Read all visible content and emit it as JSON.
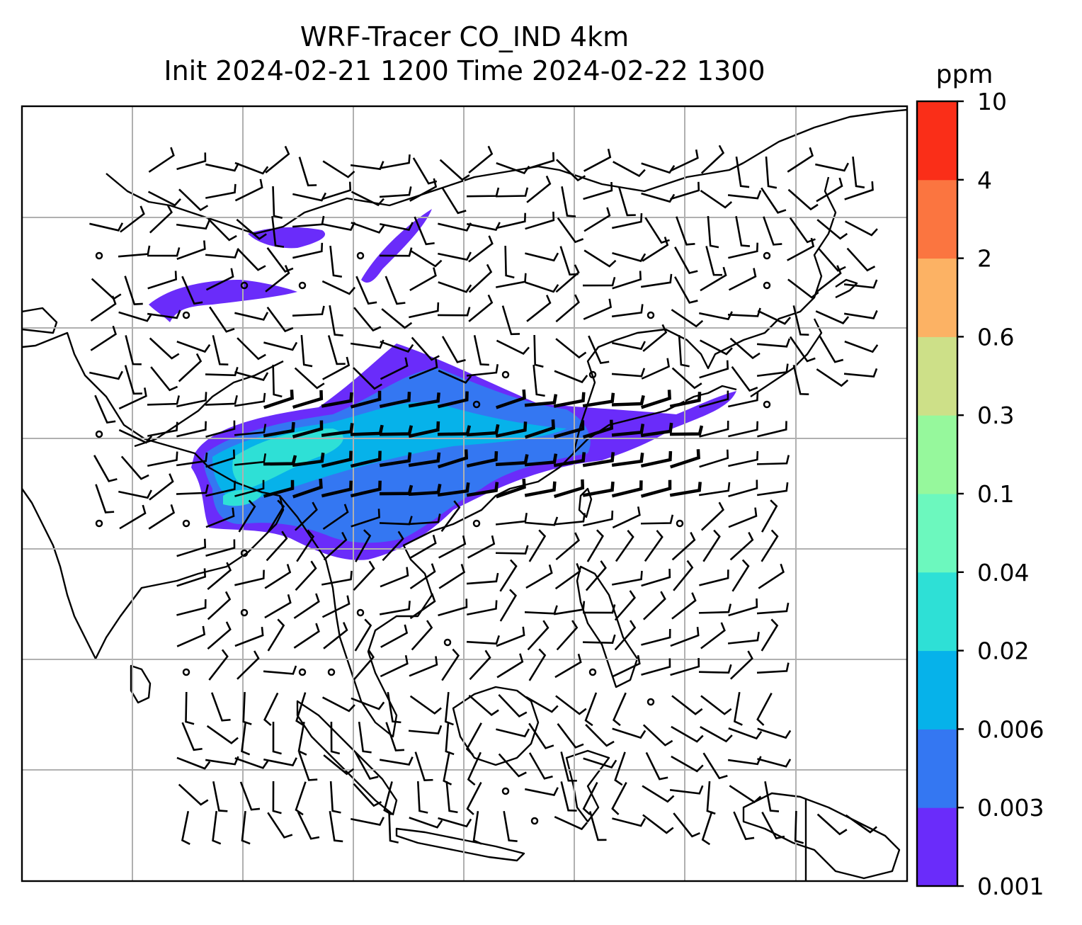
{
  "title": {
    "line1": "WRF-Tracer CO_IND 4km",
    "line2": "Init 2024-02-21 1200 Time 2024-02-22 1300"
  },
  "colorbar": {
    "unit": "ppm",
    "levels": [
      "0.001",
      "0.003",
      "0.006",
      "0.02",
      "0.04",
      "0.1",
      "0.3",
      "0.6",
      "2",
      "4",
      "10"
    ],
    "colors": [
      "#6a2cfa",
      "#3477f2",
      "#06b2ea",
      "#2ee0d6",
      "#6cf8be",
      "#96f89c",
      "#cde088",
      "#fcb264",
      "#fb7540",
      "#fa2e18"
    ]
  },
  "map": {
    "grid": "on",
    "field": "CO_IND tracer concentration",
    "overlay": "wind barbs",
    "coastline_color": "#000000",
    "gridline_color": "#b0b0b0"
  }
}
